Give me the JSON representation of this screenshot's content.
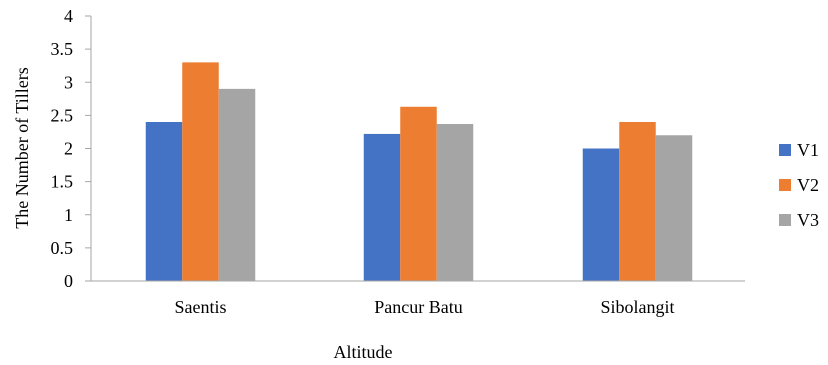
{
  "chart_data": {
    "type": "bar",
    "title": "",
    "xlabel": "Altitude",
    "ylabel": "The Number of Tillers",
    "categories": [
      "Saentis",
      "Pancur Batu",
      "Sibolangit"
    ],
    "series": [
      {
        "name": "V1",
        "values": [
          2.4,
          2.22,
          2.0
        ],
        "color": "#4472C4"
      },
      {
        "name": "V2",
        "values": [
          3.3,
          2.63,
          2.4
        ],
        "color": "#ED7D31"
      },
      {
        "name": "V3",
        "values": [
          2.9,
          2.37,
          2.2
        ],
        "color": "#A5A5A5"
      }
    ],
    "ylim": [
      0,
      4
    ],
    "yticks": [
      "0",
      "0.5",
      "1",
      "1.5",
      "2",
      "2.5",
      "3",
      "3.5",
      "4"
    ],
    "grid": false,
    "legend_position": "right"
  }
}
